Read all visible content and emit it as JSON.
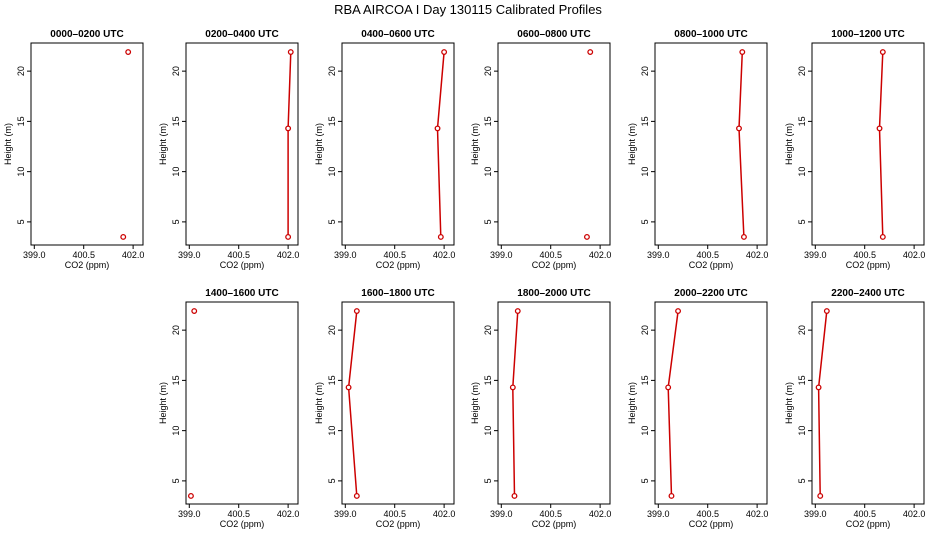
{
  "title": "RBA AIRCOA I  Day 130115  Calibrated Profiles",
  "chart_data": {
    "type": "line",
    "title": "RBA AIRCOA I  Day 130115  Calibrated Profiles",
    "xlabel": "CO2 (ppm)",
    "ylabel": "Height (m)",
    "xlim": [
      398.9,
      402.3
    ],
    "ylim": [
      2.7,
      22.8
    ],
    "xticks": [
      "399.0",
      "400.5",
      "402.0"
    ],
    "yticks": [
      "5",
      "10",
      "15",
      "20"
    ],
    "line_color": "#cc0000",
    "panels": [
      {
        "title": "0000–0200 UTC",
        "points": [
          {
            "x": 401.7,
            "y": 3.5
          },
          {
            "x": 401.85,
            "y": 21.9
          }
        ],
        "connected": false
      },
      {
        "title": "0200–0400 UTC",
        "points": [
          {
            "x": 402.0,
            "y": 3.5
          },
          {
            "x": 402.0,
            "y": 14.3
          },
          {
            "x": 402.08,
            "y": 21.9
          }
        ],
        "connected": true
      },
      {
        "title": "0400–0600 UTC",
        "points": [
          {
            "x": 401.9,
            "y": 3.5
          },
          {
            "x": 401.8,
            "y": 14.3
          },
          {
            "x": 402.0,
            "y": 21.9
          }
        ],
        "connected": true
      },
      {
        "title": "0600–0800 UTC",
        "points": [
          {
            "x": 401.6,
            "y": 3.5
          },
          {
            "x": 401.7,
            "y": 21.9
          }
        ],
        "connected": false
      },
      {
        "title": "0800–1000 UTC",
        "points": [
          {
            "x": 401.6,
            "y": 3.5
          },
          {
            "x": 401.45,
            "y": 14.3
          },
          {
            "x": 401.55,
            "y": 21.9
          }
        ],
        "connected": true
      },
      {
        "title": "1000–1200 UTC",
        "points": [
          {
            "x": 401.05,
            "y": 3.5
          },
          {
            "x": 400.95,
            "y": 14.3
          },
          {
            "x": 401.05,
            "y": 21.9
          }
        ],
        "connected": true
      },
      {
        "title": "1400–1600 UTC",
        "points": [
          {
            "x": 399.05,
            "y": 3.5
          },
          {
            "x": 399.15,
            "y": 21.9
          }
        ],
        "connected": false
      },
      {
        "title": "1600–1800 UTC",
        "points": [
          {
            "x": 399.35,
            "y": 3.5
          },
          {
            "x": 399.1,
            "y": 14.3
          },
          {
            "x": 399.35,
            "y": 21.9
          }
        ],
        "connected": true
      },
      {
        "title": "1800–2000 UTC",
        "points": [
          {
            "x": 399.4,
            "y": 3.5
          },
          {
            "x": 399.35,
            "y": 14.3
          },
          {
            "x": 399.5,
            "y": 21.9
          }
        ],
        "connected": true
      },
      {
        "title": "2000–2200 UTC",
        "points": [
          {
            "x": 399.4,
            "y": 3.5
          },
          {
            "x": 399.3,
            "y": 14.3
          },
          {
            "x": 399.6,
            "y": 21.9
          }
        ],
        "connected": true
      },
      {
        "title": "2200–2400 UTC",
        "points": [
          {
            "x": 399.15,
            "y": 3.5
          },
          {
            "x": 399.1,
            "y": 14.3
          },
          {
            "x": 399.35,
            "y": 21.9
          }
        ],
        "connected": true
      }
    ]
  }
}
